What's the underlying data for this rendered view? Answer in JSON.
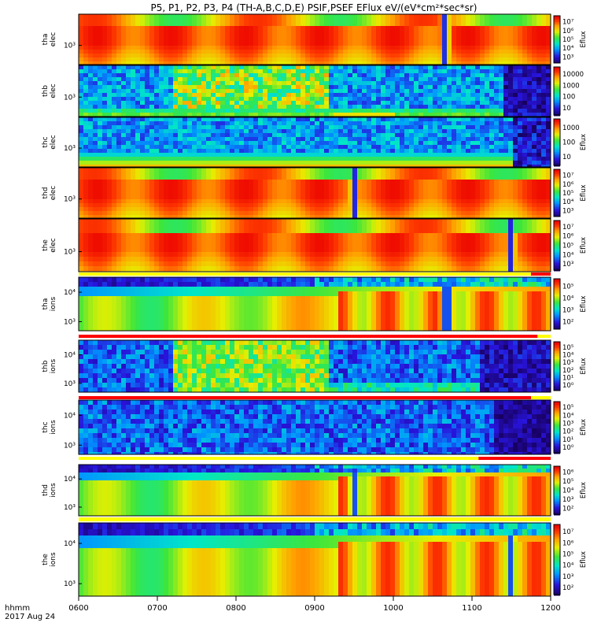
{
  "chart_data": {
    "type": "heatmap",
    "title": "P5, P1, P2, P3, P4 (TH-A,B,C,D,E) PSIF,PSEF EFlux eV/(eV*cm²*sec*sr)",
    "x_ticks": [
      "0600",
      "0700",
      "0800",
      "0900",
      "1000",
      "1100",
      "1200"
    ],
    "x_range": [
      "0600",
      "1200"
    ],
    "x_caption": [
      "hhmm",
      "2017 Aug 24"
    ],
    "panels": [
      {
        "label": [
          "tha",
          "elec"
        ],
        "y_ticks": [
          "10³"
        ],
        "cbar_ticks": [
          "10³",
          "10⁴",
          "10⁵",
          "10⁶",
          "10⁷"
        ],
        "cbar_label": "Eflux",
        "kind": "red",
        "dips": [
          1040
        ]
      },
      {
        "label": [
          "thb",
          "elec"
        ],
        "y_ticks": [
          "10³"
        ],
        "cbar_ticks": [
          "10",
          "100",
          "1000",
          "10000"
        ],
        "cbar_label": "",
        "kind": "noisy_b",
        "dips": []
      },
      {
        "label": [
          "thc",
          "elec"
        ],
        "y_ticks": [
          "10³"
        ],
        "cbar_ticks": [
          "10",
          "100",
          "1000"
        ],
        "cbar_label": "Eflux",
        "kind": "noisy_c",
        "dips": []
      },
      {
        "label": [
          "thd",
          "elec"
        ],
        "y_ticks": [
          "10³"
        ],
        "cbar_ticks": [
          "10³",
          "10⁴",
          "10⁵",
          "10⁶",
          "10⁷"
        ],
        "cbar_label": "Eflux",
        "kind": "red",
        "dips": [
          930
        ]
      },
      {
        "label": [
          "the",
          "elec"
        ],
        "y_ticks": [
          "10³"
        ],
        "cbar_ticks": [
          "10³",
          "10⁴",
          "10⁵",
          "10⁶",
          "10⁷"
        ],
        "cbar_label": "Eflux",
        "kind": "red",
        "dips": [
          1090
        ]
      },
      {
        "label": [
          "tha",
          "ions"
        ],
        "y_ticks": [
          "10⁴",
          "10³"
        ],
        "cbar_ticks": [
          "10²",
          "10³",
          "10⁴",
          "10⁵"
        ],
        "cbar_label": "Eflux",
        "kind": "ions",
        "dips": [
          1040
        ]
      },
      {
        "label": [
          "thb",
          "ions"
        ],
        "y_ticks": [
          "10⁴",
          "10³"
        ],
        "cbar_ticks": [
          "10⁰",
          "10¹",
          "10²",
          "10³",
          "10⁴",
          "10⁵"
        ],
        "cbar_label": "Eflux",
        "kind": "noisy_bi",
        "dips": []
      },
      {
        "label": [
          "thc",
          "ions"
        ],
        "y_ticks": [
          "10⁴",
          "10³"
        ],
        "cbar_ticks": [
          "10⁰",
          "10¹",
          "10²",
          "10³",
          "10⁴",
          "10⁵"
        ],
        "cbar_label": "Eflux",
        "kind": "noisy_ci",
        "dips": []
      },
      {
        "label": [
          "thd",
          "ions"
        ],
        "y_ticks": [
          "10⁴",
          "10³"
        ],
        "cbar_ticks": [
          "10²",
          "10³",
          "10⁴",
          "10⁵",
          "10⁶"
        ],
        "cbar_label": "Eflux",
        "kind": "ions",
        "dips": [
          930
        ]
      },
      {
        "label": [
          "the",
          "ions"
        ],
        "y_ticks": [
          "10⁴",
          "10³"
        ],
        "cbar_ticks": [
          "10²",
          "10³",
          "10⁴",
          "10⁵",
          "10⁶",
          "10⁷"
        ],
        "cbar_label": "Eflux",
        "kind": "ions",
        "dips": [
          1090
        ]
      }
    ],
    "mode_bars": [
      {
        "after_panel": 4,
        "segments": [
          {
            "from": "0600",
            "to": "1145",
            "color": "#ffff00"
          },
          {
            "from": "1145",
            "to": "1200",
            "color": "#ff0000"
          }
        ]
      },
      {
        "after_panel": 5,
        "segments": [
          {
            "from": "0600",
            "to": "1150",
            "color": "#ff0000"
          },
          {
            "from": "1150",
            "to": "1200",
            "color": "#ffff00"
          }
        ]
      },
      {
        "after_panel": 6,
        "segments": [
          {
            "from": "0600",
            "to": "1145",
            "color": "#ff0000"
          },
          {
            "from": "1145",
            "to": "1200",
            "color": "#ffff00"
          }
        ]
      },
      {
        "after_panel": 7,
        "segments": [
          {
            "from": "0600",
            "to": "1065",
            "color": "#ffff00"
          },
          {
            "from": "1065",
            "to": "1200",
            "color": "#ff0000"
          }
        ]
      },
      {
        "after_panel": 8,
        "segments": [
          {
            "from": "0600",
            "to": "1200",
            "color": "#ffff00"
          }
        ]
      }
    ]
  }
}
